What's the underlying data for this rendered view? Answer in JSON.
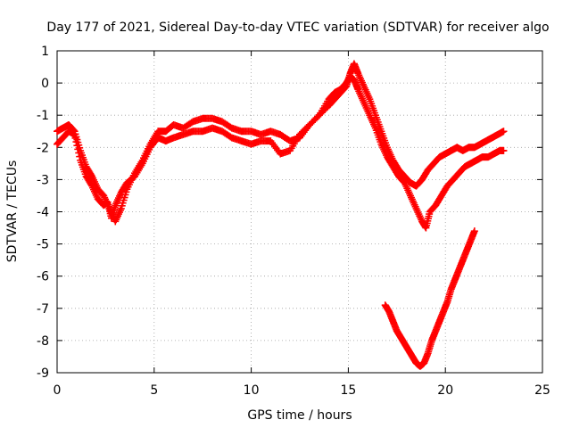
{
  "chart_data": {
    "type": "scatter",
    "title": "Day 177 of 2021, Sidereal Day-to-day VTEC variation (SDTVAR) for receiver algo",
    "xlabel": "GPS time / hours",
    "ylabel": "SDTVAR / TECUs",
    "xlim": [
      0,
      25
    ],
    "ylim": [
      -9,
      1
    ],
    "xticks": [
      0,
      5,
      10,
      15,
      20,
      25
    ],
    "yticks": [
      1,
      0,
      -1,
      -2,
      -3,
      -4,
      -5,
      -6,
      -7,
      -8,
      -9
    ],
    "grid": true,
    "marker": "+",
    "color": "#ff0000",
    "series": [
      {
        "x": [
          0.0,
          0.3,
          0.6,
          0.9,
          1.2,
          1.5,
          1.8,
          2.1,
          2.4,
          2.6,
          2.8,
          3.0,
          3.3,
          3.6,
          4.0,
          4.4,
          4.8,
          5.2,
          5.6,
          6.0,
          6.5,
          7.0,
          7.5,
          8.0,
          8.5,
          9.0,
          9.5,
          10.0,
          10.5,
          11.0,
          11.5,
          12.0,
          12.5,
          13.0,
          13.5,
          14.0,
          14.3,
          14.6,
          14.9,
          15.1,
          15.3,
          15.5,
          15.8,
          16.1,
          16.4,
          16.7,
          17.0,
          17.3,
          17.6,
          17.9,
          18.2,
          18.5,
          18.8,
          19.0,
          19.2,
          19.5,
          19.8,
          20.1,
          20.4,
          20.7,
          21.0,
          21.3,
          21.6,
          21.9,
          22.2,
          22.5,
          22.8,
          23.0
        ],
        "y": [
          -1.9,
          -1.7,
          -1.5,
          -1.6,
          -2.4,
          -2.9,
          -3.2,
          -3.6,
          -3.8,
          -3.7,
          -4.2,
          -3.8,
          -3.4,
          -3.1,
          -2.9,
          -2.5,
          -2.0,
          -1.7,
          -1.8,
          -1.7,
          -1.6,
          -1.5,
          -1.5,
          -1.4,
          -1.5,
          -1.7,
          -1.8,
          -1.9,
          -1.8,
          -1.8,
          -2.2,
          -2.1,
          -1.6,
          -1.3,
          -1.0,
          -0.5,
          -0.3,
          -0.2,
          0.0,
          0.2,
          0.1,
          -0.2,
          -0.6,
          -1.0,
          -1.4,
          -1.9,
          -2.3,
          -2.6,
          -2.9,
          -3.1,
          -3.5,
          -3.9,
          -4.3,
          -4.5,
          -4.0,
          -3.8,
          -3.5,
          -3.2,
          -3.0,
          -2.8,
          -2.6,
          -2.5,
          -2.4,
          -2.3,
          -2.3,
          -2.2,
          -2.1,
          -2.1
        ]
      },
      {
        "x": [
          0.0,
          0.3,
          0.6,
          0.9,
          1.2,
          1.5,
          1.8,
          2.1,
          2.4,
          2.7,
          3.0,
          3.3,
          3.6,
          4.0,
          4.4,
          4.8,
          5.2,
          5.6,
          6.0,
          6.5,
          7.0,
          7.5,
          8.0,
          8.5,
          9.0,
          9.5,
          10.0,
          10.5,
          11.0,
          11.5,
          12.0,
          12.5,
          13.0,
          13.5,
          14.0,
          14.3,
          14.6,
          14.9,
          15.1,
          15.3,
          15.5,
          15.8,
          16.1,
          16.4,
          16.7,
          17.0,
          17.3,
          17.6,
          17.9,
          18.2,
          18.5,
          18.8,
          19.1,
          19.4,
          19.7,
          20.0,
          20.3,
          20.6,
          20.9,
          21.2,
          21.5,
          21.8,
          22.1,
          22.4,
          22.7,
          23.0
        ],
        "y": [
          -1.5,
          -1.4,
          -1.3,
          -1.5,
          -2.1,
          -2.6,
          -2.9,
          -3.3,
          -3.5,
          -3.9,
          -4.3,
          -3.9,
          -3.3,
          -2.8,
          -2.4,
          -1.9,
          -1.5,
          -1.5,
          -1.3,
          -1.4,
          -1.2,
          -1.1,
          -1.1,
          -1.2,
          -1.4,
          -1.5,
          -1.5,
          -1.6,
          -1.5,
          -1.6,
          -1.8,
          -1.7,
          -1.3,
          -1.0,
          -0.7,
          -0.5,
          -0.3,
          -0.1,
          0.3,
          0.6,
          0.3,
          -0.1,
          -0.5,
          -1.0,
          -1.5,
          -2.0,
          -2.4,
          -2.7,
          -2.9,
          -3.1,
          -3.2,
          -3.0,
          -2.7,
          -2.5,
          -2.3,
          -2.2,
          -2.1,
          -2.0,
          -2.1,
          -2.0,
          -2.0,
          -1.9,
          -1.8,
          -1.7,
          -1.6,
          -1.5
        ]
      },
      {
        "x": [
          16.9,
          17.1,
          17.3,
          17.5,
          17.7,
          17.9,
          18.1,
          18.3,
          18.5,
          18.7,
          18.9,
          19.1,
          19.3,
          19.5,
          19.7,
          19.9,
          20.1,
          20.3,
          20.5,
          20.7,
          20.9,
          21.1,
          21.3,
          21.5
        ],
        "y": [
          -6.9,
          -7.1,
          -7.4,
          -7.7,
          -7.9,
          -8.1,
          -8.3,
          -8.5,
          -8.7,
          -8.8,
          -8.7,
          -8.4,
          -8.0,
          -7.7,
          -7.4,
          -7.1,
          -6.8,
          -6.4,
          -6.1,
          -5.8,
          -5.5,
          -5.2,
          -4.9,
          -4.6
        ]
      }
    ]
  }
}
